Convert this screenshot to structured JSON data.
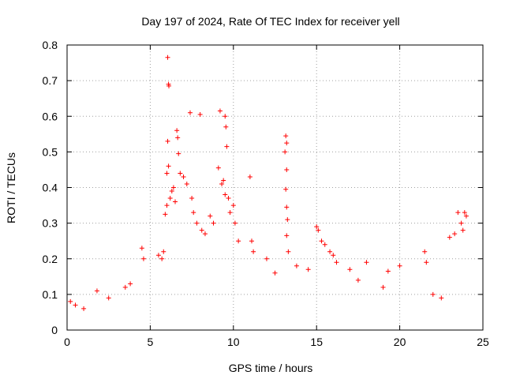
{
  "chart_data": {
    "type": "scatter",
    "title": "Day 197 of 2024, Rate Of TEC Index for receiver yell",
    "xlabel": "GPS time / hours",
    "ylabel": "ROTI / TECUs",
    "xlim": [
      0,
      25
    ],
    "ylim": [
      0,
      0.8
    ],
    "x_ticks": [
      "0",
      "5",
      "10",
      "15",
      "20",
      "25"
    ],
    "y_ticks": [
      "0",
      "0.1",
      "0.2",
      "0.3",
      "0.4",
      "0.5",
      "0.6",
      "0.7",
      "0.8"
    ],
    "grid": true,
    "marker": "+",
    "series": [
      {
        "color": "#ff0000",
        "points": [
          [
            6.05,
            0.765
          ],
          [
            6.1,
            0.69
          ],
          [
            6.12,
            0.685
          ],
          [
            6.05,
            0.53
          ],
          [
            6.6,
            0.56
          ],
          [
            6.65,
            0.54
          ],
          [
            6.7,
            0.495
          ],
          [
            7.4,
            0.61
          ],
          [
            8.0,
            0.605
          ],
          [
            9.2,
            0.615
          ],
          [
            9.5,
            0.6
          ],
          [
            9.55,
            0.57
          ],
          [
            9.6,
            0.515
          ],
          [
            9.1,
            0.455
          ],
          [
            11.0,
            0.43
          ],
          [
            13.15,
            0.545
          ],
          [
            13.2,
            0.525
          ],
          [
            13.1,
            0.5
          ],
          [
            13.2,
            0.45
          ],
          [
            13.15,
            0.395
          ],
          [
            13.2,
            0.345
          ],
          [
            13.25,
            0.31
          ],
          [
            13.2,
            0.265
          ],
          [
            13.3,
            0.22
          ],
          [
            5.9,
            0.325
          ],
          [
            6.0,
            0.35
          ],
          [
            6.2,
            0.37
          ],
          [
            6.3,
            0.39
          ],
          [
            6.4,
            0.4
          ],
          [
            6.5,
            0.36
          ],
          [
            6.0,
            0.44
          ],
          [
            6.1,
            0.46
          ],
          [
            6.8,
            0.44
          ],
          [
            7.0,
            0.43
          ],
          [
            7.2,
            0.41
          ],
          [
            7.5,
            0.37
          ],
          [
            7.6,
            0.33
          ],
          [
            7.8,
            0.3
          ],
          [
            8.1,
            0.28
          ],
          [
            8.3,
            0.27
          ],
          [
            8.6,
            0.32
          ],
          [
            8.8,
            0.3
          ],
          [
            9.3,
            0.41
          ],
          [
            9.4,
            0.42
          ],
          [
            9.5,
            0.38
          ],
          [
            9.7,
            0.37
          ],
          [
            9.8,
            0.33
          ],
          [
            10.0,
            0.35
          ],
          [
            10.1,
            0.3
          ],
          [
            10.3,
            0.25
          ],
          [
            11.1,
            0.25
          ],
          [
            11.2,
            0.22
          ],
          [
            12.0,
            0.2
          ],
          [
            4.5,
            0.23
          ],
          [
            4.6,
            0.2
          ],
          [
            5.5,
            0.21
          ],
          [
            5.7,
            0.2
          ],
          [
            5.8,
            0.22
          ],
          [
            15.0,
            0.29
          ],
          [
            15.1,
            0.28
          ],
          [
            15.3,
            0.25
          ],
          [
            15.5,
            0.24
          ],
          [
            15.8,
            0.22
          ],
          [
            16.0,
            0.21
          ],
          [
            16.2,
            0.19
          ],
          [
            17.0,
            0.17
          ],
          [
            18.0,
            0.19
          ],
          [
            19.3,
            0.165
          ],
          [
            20.0,
            0.18
          ],
          [
            21.5,
            0.22
          ],
          [
            21.6,
            0.19
          ],
          [
            23.0,
            0.26
          ],
          [
            23.3,
            0.27
          ],
          [
            23.5,
            0.33
          ],
          [
            23.9,
            0.33
          ],
          [
            24.0,
            0.32
          ],
          [
            23.7,
            0.3
          ],
          [
            23.8,
            0.28
          ],
          [
            1.8,
            0.11
          ],
          [
            2.5,
            0.09
          ],
          [
            3.5,
            0.12
          ],
          [
            3.8,
            0.13
          ],
          [
            0.2,
            0.08
          ],
          [
            0.5,
            0.07
          ],
          [
            1.0,
            0.06
          ],
          [
            12.5,
            0.16
          ],
          [
            13.8,
            0.18
          ],
          [
            14.5,
            0.17
          ],
          [
            17.5,
            0.14
          ],
          [
            19.0,
            0.12
          ],
          [
            22.0,
            0.1
          ],
          [
            22.5,
            0.09
          ]
        ]
      }
    ]
  }
}
